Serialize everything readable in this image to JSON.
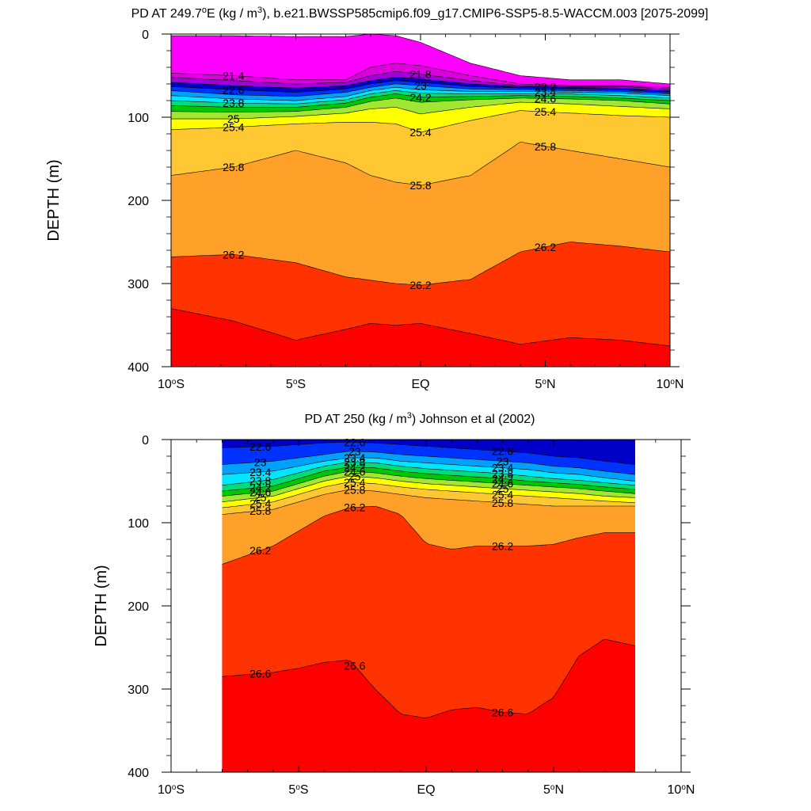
{
  "figure": {
    "panels": [
      {
        "title_main": "PD AT 249.7",
        "title_deg": "o",
        "title_mid": "E (kg / m",
        "title_sup": "3",
        "title_rest": "), b.e21.BWSSP585cmip6.f09_g17.CMIP6-SSP5-8.5-WACCM.003 [2075-2099]",
        "ylabel": "DEPTH (m)"
      },
      {
        "title_main": "PD AT 250 (kg / m",
        "title_sup": "3",
        "title_rest": ") Johnson et al (2002)",
        "ylabel": "DEPTH (m)"
      }
    ],
    "x_ticks": [
      {
        "pre": "10",
        "deg": "o",
        "post": "S"
      },
      {
        "pre": "5",
        "deg": "o",
        "post": "S"
      },
      {
        "pre": "EQ",
        "deg": "",
        "post": ""
      },
      {
        "pre": "5",
        "deg": "o",
        "post": "N"
      },
      {
        "pre": "10",
        "deg": "o",
        "post": "N"
      }
    ],
    "y_ticks": [
      "0",
      "100",
      "200",
      "300",
      "400"
    ]
  },
  "chart_data": [
    {
      "type": "heatmap",
      "subtype": "filled-contour depth section",
      "xlim": [
        -10,
        10
      ],
      "ylim": [
        400,
        0
      ],
      "yreversed": true,
      "x_ticks": [
        -10,
        -5,
        0,
        5,
        10
      ],
      "y_ticks": [
        0,
        100,
        200,
        300,
        400
      ],
      "missing_color": "#ffffff",
      "surface_boundary": {
        "lat": [
          -10,
          -7.5,
          -5,
          -3,
          -2,
          -1,
          0,
          2,
          4,
          6,
          8,
          10
        ],
        "depth": [
          2,
          2,
          3,
          3,
          0,
          2,
          10,
          35,
          50,
          55,
          55,
          60
        ]
      },
      "contour_label_values": [
        21.4,
        21.8,
        22.2,
        22.6,
        23,
        23.4,
        23.8,
        24.2,
        24.6,
        25,
        25.4,
        25.8,
        26.2
      ],
      "isopycnals": [
        {
          "value": 21.4,
          "lat": [
            -10,
            -7.5,
            -5,
            -3,
            -2,
            -1,
            0,
            2,
            4,
            6,
            8,
            10
          ],
          "depth": [
            47,
            50,
            55,
            55,
            40,
            35,
            38,
            50,
            60,
            62,
            62,
            64
          ]
        },
        {
          "value": 21.8,
          "lat": [
            -10,
            -7.5,
            -5,
            -3,
            -2,
            -1,
            0,
            2,
            4,
            6,
            8,
            10
          ],
          "depth": [
            52,
            56,
            60,
            58,
            50,
            45,
            48,
            56,
            62,
            63,
            63,
            66
          ]
        },
        {
          "value": 22.2,
          "lat": [
            -10,
            -7.5,
            -5,
            -3,
            -2,
            -1,
            0,
            2,
            4,
            6,
            8,
            10
          ],
          "depth": [
            58,
            62,
            65,
            62,
            56,
            52,
            54,
            60,
            63,
            64,
            65,
            68
          ]
        },
        {
          "value": 22.6,
          "lat": [
            -10,
            -7.5,
            -5,
            -3,
            -2,
            -1,
            0,
            2,
            4,
            6,
            8,
            10
          ],
          "depth": [
            63,
            67,
            70,
            66,
            60,
            56,
            58,
            63,
            65,
            66,
            67,
            70
          ]
        },
        {
          "value": 23.0,
          "lat": [
            -10,
            -7.5,
            -5,
            -3,
            -2,
            -1,
            0,
            2,
            4,
            6,
            8,
            10
          ],
          "depth": [
            68,
            73,
            75,
            70,
            64,
            60,
            62,
            66,
            67,
            68,
            69,
            72
          ]
        },
        {
          "value": 23.4,
          "lat": [
            -10,
            -7.5,
            -5,
            -3,
            -2,
            -1,
            0,
            2,
            4,
            6,
            8,
            10
          ],
          "depth": [
            74,
            78,
            80,
            75,
            68,
            64,
            67,
            69,
            69,
            70,
            71,
            74
          ]
        },
        {
          "value": 23.8,
          "lat": [
            -10,
            -7.5,
            -5,
            -3,
            -2,
            -1,
            0,
            2,
            4,
            6,
            8,
            10
          ],
          "depth": [
            80,
            83,
            84,
            79,
            72,
            68,
            71,
            72,
            72,
            72,
            74,
            77
          ]
        },
        {
          "value": 24.2,
          "lat": [
            -10,
            -7.5,
            -5,
            -3,
            -2,
            -1,
            0,
            2,
            4,
            6,
            8,
            10
          ],
          "depth": [
            86,
            88,
            88,
            83,
            76,
            72,
            76,
            75,
            74,
            75,
            77,
            80
          ]
        },
        {
          "value": 24.6,
          "lat": [
            -10,
            -7.5,
            -5,
            -3,
            -2,
            -1,
            0,
            2,
            4,
            6,
            8,
            10
          ],
          "depth": [
            93,
            94,
            93,
            88,
            81,
            77,
            82,
            79,
            77,
            78,
            80,
            84
          ]
        },
        {
          "value": 25.0,
          "lat": [
            -10,
            -7.5,
            -5,
            -3,
            -2,
            -1,
            0,
            2,
            4,
            6,
            8,
            10
          ],
          "depth": [
            102,
            102,
            99,
            95,
            90,
            88,
            96,
            88,
            82,
            84,
            87,
            90
          ]
        },
        {
          "value": 25.4,
          "lat": [
            -10,
            -7.5,
            -5,
            -3,
            -2,
            -1,
            0,
            2,
            4,
            6,
            8,
            10
          ],
          "depth": [
            115,
            112,
            108,
            106,
            106,
            108,
            118,
            104,
            92,
            95,
            98,
            100
          ]
        },
        {
          "value": 25.8,
          "lat": [
            -10,
            -7.5,
            -5,
            -3,
            -2,
            -1,
            0,
            2,
            4,
            6,
            8,
            10
          ],
          "depth": [
            170,
            160,
            140,
            155,
            170,
            178,
            182,
            170,
            130,
            140,
            150,
            160
          ]
        },
        {
          "value": 26.2,
          "lat": [
            -10,
            -7.5,
            -5,
            -3,
            -2,
            -1,
            0,
            2,
            4,
            6,
            8,
            10
          ],
          "depth": [
            268,
            265,
            275,
            292,
            296,
            300,
            302,
            295,
            262,
            250,
            255,
            262
          ]
        },
        {
          "value": 26.6,
          "lat": [
            -10,
            -7.5,
            -5,
            -3,
            -2,
            -1,
            0,
            2,
            4,
            6,
            8,
            10
          ],
          "depth": [
            330,
            345,
            368,
            355,
            348,
            350,
            348,
            360,
            373,
            365,
            368,
            375
          ]
        }
      ]
    },
    {
      "type": "heatmap",
      "subtype": "filled-contour depth section",
      "xlim": [
        -10,
        10
      ],
      "ylim": [
        400,
        0
      ],
      "yreversed": true,
      "data_lat_range": [
        -8,
        8.2
      ],
      "x_ticks": [
        -10,
        -5,
        0,
        5,
        10
      ],
      "y_ticks": [
        0,
        100,
        200,
        300,
        400
      ],
      "missing_color": "#ffffff",
      "contour_label_values": [
        22.6,
        23,
        23.4,
        23.8,
        24.2,
        24.6,
        25,
        25.4,
        25.8,
        26.2,
        26.6
      ],
      "isopycnals": [
        {
          "value": 22.6,
          "lat": [
            -8,
            -6,
            -5,
            -4,
            -3,
            -2,
            -1,
            0,
            1,
            2,
            3,
            4,
            5,
            6,
            7,
            8.2
          ],
          "depth": [
            10,
            8,
            6,
            4,
            3,
            4,
            6,
            8,
            10,
            12,
            14,
            16,
            20,
            22,
            26,
            30
          ]
        },
        {
          "value": 23.0,
          "lat": [
            -8,
            -6,
            -5,
            -4,
            -3,
            -2,
            -1,
            0,
            1,
            2,
            3,
            4,
            5,
            6,
            7,
            8.2
          ],
          "depth": [
            30,
            26,
            22,
            18,
            14,
            15,
            18,
            20,
            22,
            24,
            26,
            28,
            32,
            34,
            38,
            42
          ]
        },
        {
          "value": 23.4,
          "lat": [
            -8,
            -6,
            -5,
            -4,
            -3,
            -2,
            -1,
            0,
            1,
            2,
            3,
            4,
            5,
            6,
            7,
            8.2
          ],
          "depth": [
            42,
            38,
            32,
            26,
            22,
            22,
            26,
            28,
            30,
            32,
            34,
            36,
            40,
            42,
            46,
            50
          ]
        },
        {
          "value": 23.8,
          "lat": [
            -8,
            -6,
            -5,
            -4,
            -3,
            -2,
            -1,
            0,
            1,
            2,
            3,
            4,
            5,
            6,
            7,
            8.2
          ],
          "depth": [
            55,
            48,
            40,
            32,
            27,
            28,
            32,
            35,
            37,
            39,
            41,
            44,
            47,
            49,
            52,
            55
          ]
        },
        {
          "value": 24.2,
          "lat": [
            -8,
            -6,
            -5,
            -4,
            -3,
            -2,
            -1,
            0,
            1,
            2,
            3,
            4,
            5,
            6,
            7,
            8.2
          ],
          "depth": [
            62,
            56,
            47,
            38,
            33,
            34,
            38,
            41,
            43,
            45,
            47,
            50,
            52,
            54,
            57,
            60
          ]
        },
        {
          "value": 24.6,
          "lat": [
            -8,
            -6,
            -5,
            -4,
            -3,
            -2,
            -1,
            0,
            1,
            2,
            3,
            4,
            5,
            6,
            7,
            8.2
          ],
          "depth": [
            68,
            62,
            53,
            44,
            38,
            40,
            44,
            47,
            49,
            51,
            53,
            55,
            57,
            59,
            62,
            65
          ]
        },
        {
          "value": 25.0,
          "lat": [
            -8,
            -6,
            -5,
            -4,
            -3,
            -2,
            -1,
            0,
            1,
            2,
            3,
            4,
            5,
            6,
            7,
            8.2
          ],
          "depth": [
            75,
            68,
            59,
            50,
            44,
            46,
            50,
            53,
            55,
            57,
            59,
            61,
            63,
            65,
            68,
            70
          ]
        },
        {
          "value": 25.4,
          "lat": [
            -8,
            -6,
            -5,
            -4,
            -3,
            -2,
            -1,
            0,
            1,
            2,
            3,
            4,
            5,
            6,
            7,
            8.2
          ],
          "depth": [
            82,
            75,
            66,
            57,
            51,
            53,
            57,
            60,
            62,
            64,
            66,
            68,
            70,
            72,
            74,
            76
          ]
        },
        {
          "value": 25.8,
          "lat": [
            -8,
            -6,
            -5,
            -4,
            -3,
            -2,
            -1,
            0,
            1,
            2,
            3,
            4,
            5,
            6,
            7,
            8.2
          ],
          "depth": [
            90,
            84,
            75,
            66,
            60,
            62,
            66,
            70,
            72,
            74,
            76,
            78,
            80,
            80,
            80,
            80
          ]
        },
        {
          "value": 26.2,
          "lat": [
            -8,
            -6,
            -5,
            -4,
            -3,
            -2,
            -1,
            0,
            1,
            2,
            3,
            4,
            5,
            6,
            7,
            8.2
          ],
          "depth": [
            150,
            128,
            110,
            92,
            82,
            80,
            90,
            125,
            132,
            128,
            128,
            128,
            126,
            118,
            112,
            112
          ]
        },
        {
          "value": 26.6,
          "lat": [
            -8,
            -6,
            -5,
            -4,
            -3,
            -2,
            -1,
            0,
            1,
            2,
            3,
            4,
            5,
            6,
            7,
            8.2
          ],
          "depth": [
            285,
            280,
            275,
            268,
            265,
            300,
            330,
            335,
            325,
            322,
            328,
            330,
            310,
            260,
            240,
            248
          ]
        }
      ]
    }
  ]
}
